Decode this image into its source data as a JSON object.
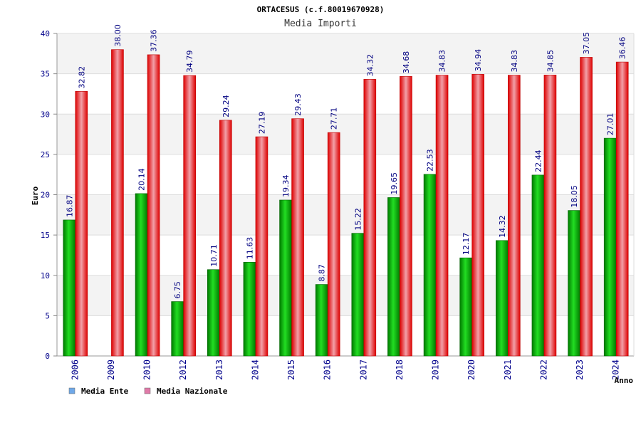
{
  "chart_data": {
    "type": "bar",
    "title": "ORTACESUS (c.f.80019670928)",
    "subtitle": "Media Importi",
    "xlabel": "Anno",
    "ylabel": "Euro",
    "ylim": [
      0,
      40
    ],
    "yticks": [
      0,
      5,
      10,
      15,
      20,
      25,
      30,
      35,
      40
    ],
    "grid": true,
    "legend_position": "bottom-left",
    "categories": [
      "2006",
      "2009",
      "2010",
      "2012",
      "2013",
      "2014",
      "2015",
      "2016",
      "2017",
      "2018",
      "2019",
      "2020",
      "2021",
      "2022",
      "2023",
      "2024"
    ],
    "series": [
      {
        "name": "Media Ente",
        "color": "#00b000",
        "legend_color": "#6fa8e8",
        "values": [
          16.87,
          null,
          20.14,
          6.75,
          10.71,
          11.63,
          19.34,
          8.87,
          15.22,
          19.65,
          22.53,
          12.17,
          14.32,
          22.44,
          18.05,
          27.01
        ],
        "labels": [
          "16.87",
          "",
          "20.14",
          "6.75",
          "10.71",
          "11.63",
          "19.34",
          "8.87",
          "15.22",
          "19.65",
          "22.53",
          "12.17",
          "14.32",
          "22.44",
          "18.05",
          "27.01"
        ]
      },
      {
        "name": "Media Nazionale",
        "color": "#ee0000",
        "legend_color": "#e07aa8",
        "values": [
          32.82,
          38.0,
          37.36,
          34.79,
          29.24,
          27.19,
          29.43,
          27.71,
          34.32,
          34.68,
          34.83,
          34.94,
          34.83,
          34.85,
          37.05,
          36.46
        ],
        "labels": [
          "32.82",
          "38.00",
          "37.36",
          "34.79",
          "29.24",
          "27.19",
          "29.43",
          "27.71",
          "34.32",
          "34.68",
          "34.83",
          "34.94",
          "34.83",
          "34.85",
          "37.05",
          "36.46"
        ]
      }
    ]
  }
}
